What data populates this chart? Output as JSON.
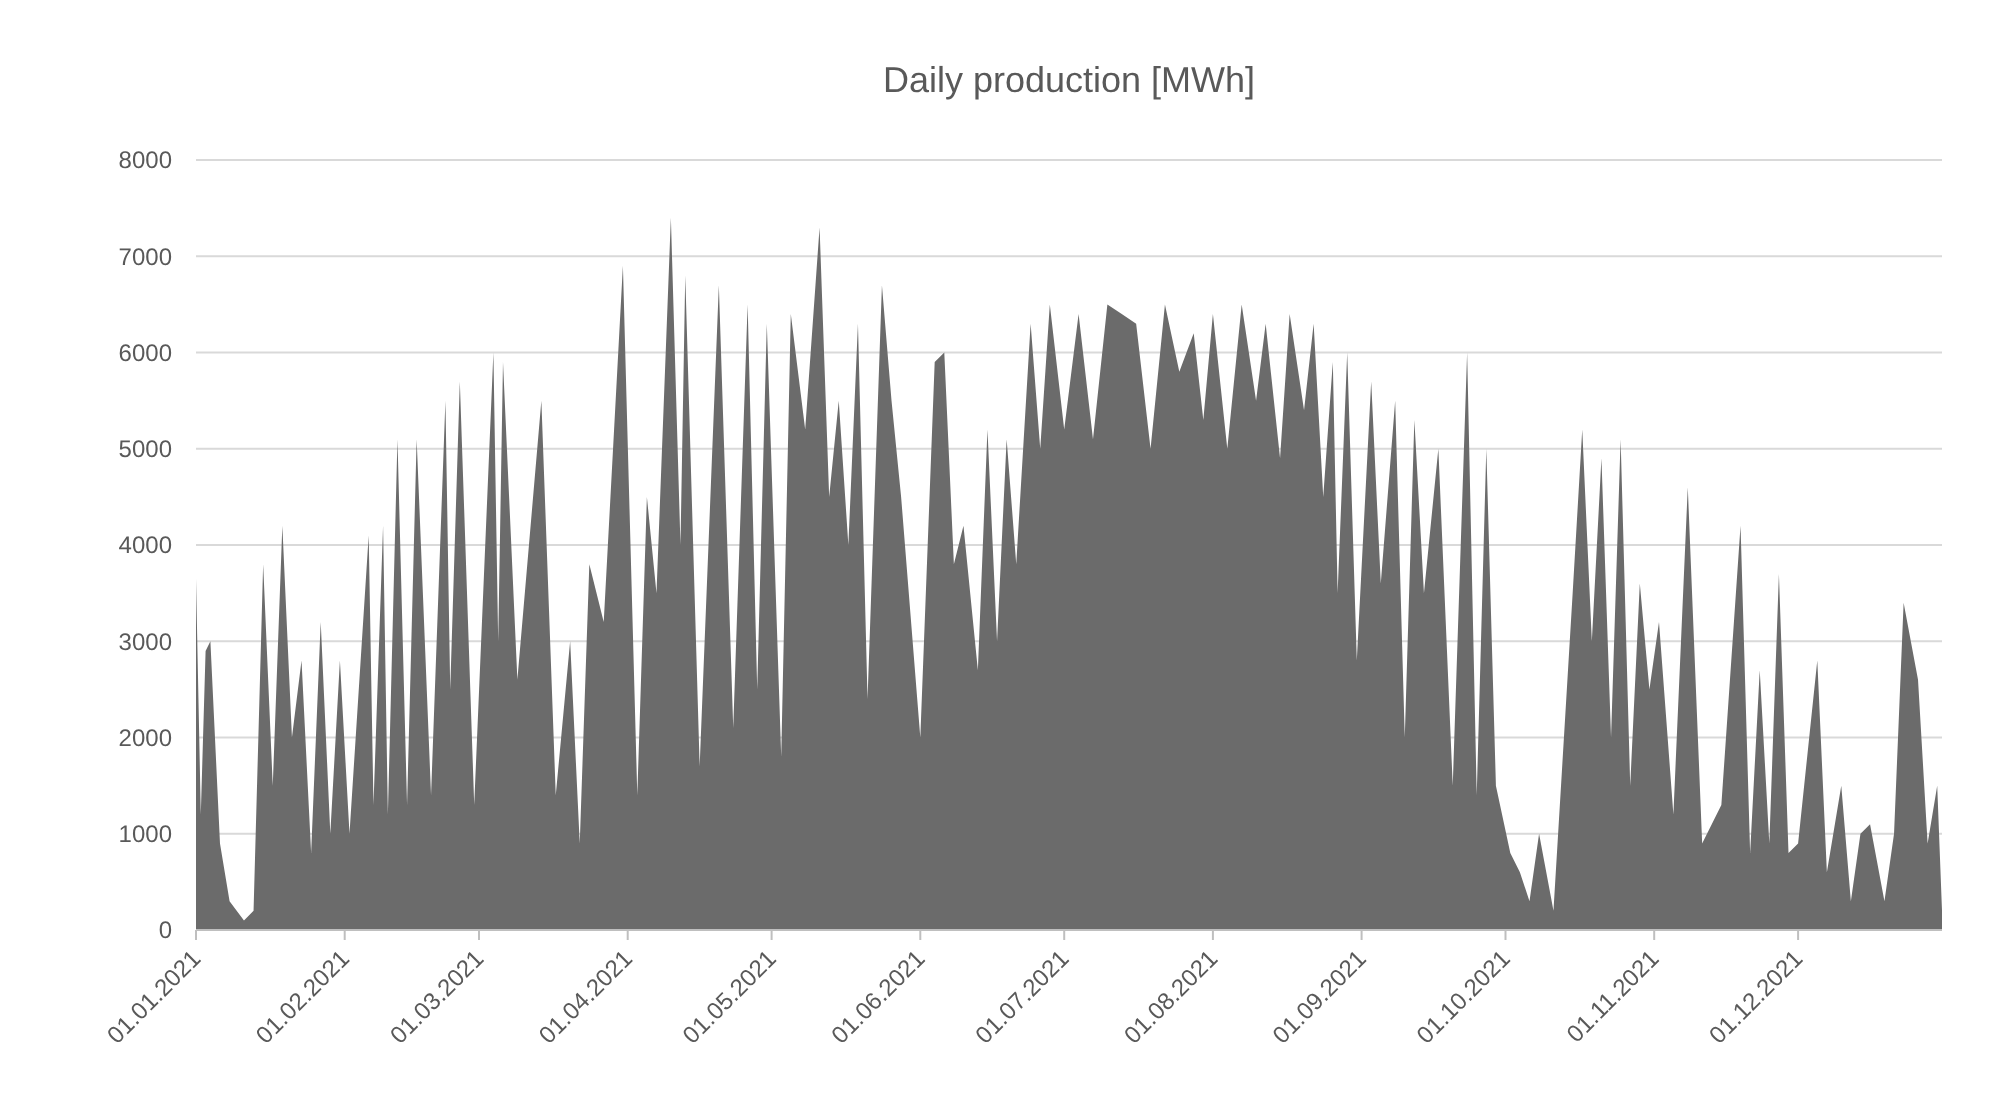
{
  "chart_data": {
    "type": "area",
    "title": "Daily production [MWh]",
    "x": [
      "2021-01-01",
      "2021-01-02",
      "2021-01-03",
      "2021-01-04",
      "2021-01-06",
      "2021-01-08",
      "2021-01-11",
      "2021-01-13",
      "2021-01-15",
      "2021-01-17",
      "2021-01-19",
      "2021-01-21",
      "2021-01-23",
      "2021-01-25",
      "2021-01-27",
      "2021-01-29",
      "2021-01-31",
      "2021-02-02",
      "2021-02-06",
      "2021-02-07",
      "2021-02-09",
      "2021-02-10",
      "2021-02-12",
      "2021-02-14",
      "2021-02-16",
      "2021-02-19",
      "2021-02-22",
      "2021-02-23",
      "2021-02-25",
      "2021-02-28",
      "2021-03-04",
      "2021-03-05",
      "2021-03-06",
      "2021-03-09",
      "2021-03-14",
      "2021-03-17",
      "2021-03-20",
      "2021-03-22",
      "2021-03-24",
      "2021-03-27",
      "2021-03-31",
      "2021-04-03",
      "2021-04-05",
      "2021-04-07",
      "2021-04-10",
      "2021-04-12",
      "2021-04-13",
      "2021-04-16",
      "2021-04-20",
      "2021-04-23",
      "2021-04-26",
      "2021-04-28",
      "2021-04-30",
      "2021-05-03",
      "2021-05-05",
      "2021-05-08",
      "2021-05-11",
      "2021-05-13",
      "2021-05-15",
      "2021-05-17",
      "2021-05-19",
      "2021-05-21",
      "2021-05-24",
      "2021-05-26",
      "2021-05-28",
      "2021-06-01",
      "2021-06-04",
      "2021-06-06",
      "2021-06-08",
      "2021-06-10",
      "2021-06-13",
      "2021-06-15",
      "2021-06-17",
      "2021-06-19",
      "2021-06-21",
      "2021-06-24",
      "2021-06-26",
      "2021-06-28",
      "2021-07-01",
      "2021-07-04",
      "2021-07-07",
      "2021-07-10",
      "2021-07-13",
      "2021-07-16",
      "2021-07-19",
      "2021-07-22",
      "2021-07-25",
      "2021-07-28",
      "2021-07-30",
      "2021-08-01",
      "2021-08-04",
      "2021-08-07",
      "2021-08-10",
      "2021-08-12",
      "2021-08-15",
      "2021-08-17",
      "2021-08-20",
      "2021-08-22",
      "2021-08-24",
      "2021-08-26",
      "2021-08-27",
      "2021-08-29",
      "2021-08-31",
      "2021-09-03",
      "2021-09-05",
      "2021-09-08",
      "2021-09-10",
      "2021-09-12",
      "2021-09-14",
      "2021-09-17",
      "2021-09-20",
      "2021-09-23",
      "2021-09-25",
      "2021-09-27",
      "2021-09-29",
      "2021-10-02",
      "2021-10-04",
      "2021-10-06",
      "2021-10-08",
      "2021-10-11",
      "2021-10-15",
      "2021-10-17",
      "2021-10-19",
      "2021-10-21",
      "2021-10-23",
      "2021-10-25",
      "2021-10-27",
      "2021-10-29",
      "2021-10-31",
      "2021-11-02",
      "2021-11-05",
      "2021-11-08",
      "2021-11-11",
      "2021-11-15",
      "2021-11-19",
      "2021-11-21",
      "2021-11-23",
      "2021-11-25",
      "2021-11-27",
      "2021-11-29",
      "2021-12-01",
      "2021-12-05",
      "2021-12-07",
      "2021-12-10",
      "2021-12-12",
      "2021-12-14",
      "2021-12-16",
      "2021-12-19",
      "2021-12-21",
      "2021-12-23",
      "2021-12-26",
      "2021-12-28",
      "2021-12-30",
      "2021-12-31"
    ],
    "values": [
      3650,
      1200,
      2900,
      3000,
      900,
      300,
      100,
      200,
      3800,
      1500,
      4200,
      2000,
      2800,
      800,
      3200,
      1000,
      2800,
      1000,
      4100,
      1300,
      4200,
      1200,
      5100,
      1300,
      5100,
      1400,
      5500,
      2500,
      5700,
      1300,
      6000,
      3000,
      5900,
      2600,
      5500,
      1400,
      3000,
      900,
      3800,
      3200,
      6900,
      1400,
      4500,
      3500,
      7400,
      4000,
      6800,
      1700,
      6700,
      2100,
      6500,
      2500,
      6300,
      1800,
      6400,
      5200,
      7300,
      4500,
      5500,
      4000,
      6300,
      2400,
      6700,
      5500,
      4500,
      2000,
      5900,
      6000,
      3800,
      4200,
      2700,
      5200,
      3000,
      5100,
      3800,
      6300,
      5000,
      6500,
      5200,
      6400,
      5100,
      6500,
      6400,
      6300,
      5000,
      6500,
      5800,
      6200,
      5300,
      6400,
      5000,
      6500,
      5500,
      6300,
      4900,
      6400,
      5400,
      6300,
      4500,
      5900,
      3500,
      6000,
      2800,
      5700,
      3600,
      5500,
      2000,
      5300,
      3500,
      5000,
      1500,
      6000,
      1400,
      5000,
      1500,
      800,
      600,
      300,
      1000,
      200,
      3500,
      5200,
      3000,
      4900,
      2000,
      5100,
      1500,
      3600,
      2500,
      3200,
      1200,
      4600,
      900,
      1300,
      4200,
      800,
      2700,
      900,
      3700,
      800,
      900,
      2800,
      600,
      1500,
      300,
      1000,
      1100,
      300,
      1000,
      3400,
      2600,
      900,
      1500,
      200
    ],
    "color": "#6b6b6b",
    "xlim": [
      "2021-01-01",
      "2021-12-31"
    ],
    "xticks": [
      {
        "value": "2021-01-01",
        "label": "01.01.2021"
      },
      {
        "value": "2021-02-01",
        "label": "01.02.2021"
      },
      {
        "value": "2021-03-01",
        "label": "01.03.2021"
      },
      {
        "value": "2021-04-01",
        "label": "01.04.2021"
      },
      {
        "value": "2021-05-01",
        "label": "01.05.2021"
      },
      {
        "value": "2021-06-01",
        "label": "01.06.2021"
      },
      {
        "value": "2021-07-01",
        "label": "01.07.2021"
      },
      {
        "value": "2021-08-01",
        "label": "01.08.2021"
      },
      {
        "value": "2021-09-01",
        "label": "01.09.2021"
      },
      {
        "value": "2021-10-01",
        "label": "01.10.2021"
      },
      {
        "value": "2021-11-01",
        "label": "01.11.2021"
      },
      {
        "value": "2021-12-01",
        "label": "01.12.2021"
      }
    ],
    "ylim": [
      0,
      8000
    ],
    "yticks": [
      0,
      1000,
      2000,
      3000,
      4000,
      5000,
      6000,
      7000,
      8000
    ],
    "grid": "y"
  }
}
